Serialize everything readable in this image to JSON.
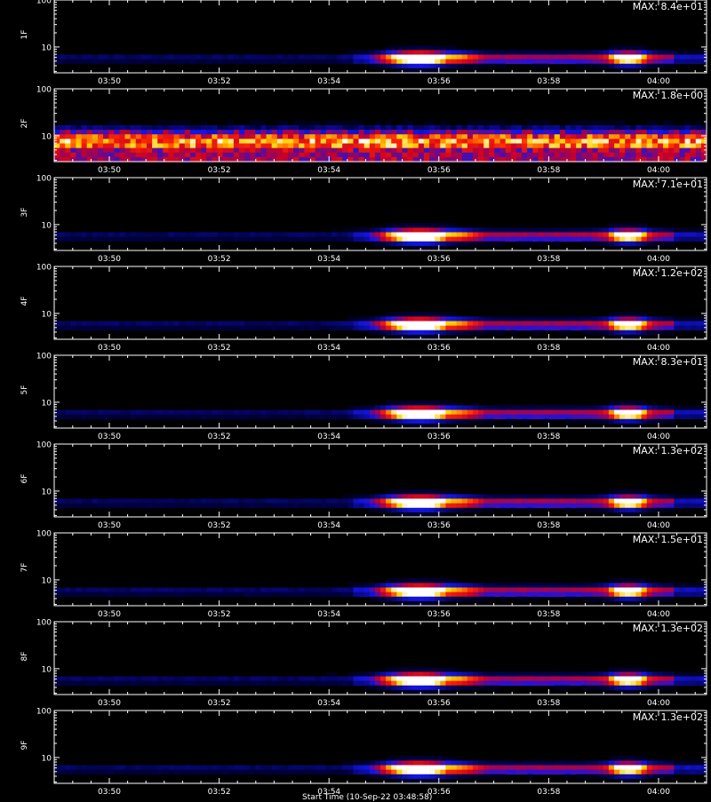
{
  "chart_data": {
    "type": "heatmap",
    "x_ticks": [
      "03:50",
      "03:52",
      "03:54",
      "03:56",
      "03:58",
      "04:00"
    ],
    "y_ticks": [
      "10",
      "100"
    ],
    "scale": "log",
    "colormap": "black-blue-red-yellow-white",
    "panels": [
      {
        "label": "1F",
        "max_text": "MAX: 8.4e+01",
        "max": 84,
        "style": "burst"
      },
      {
        "label": "2F",
        "max_text": "MAX: 1.8e+00",
        "max": 1.8,
        "style": "noise"
      },
      {
        "label": "3F",
        "max_text": "MAX: 7.1e+01",
        "max": 71,
        "style": "burst"
      },
      {
        "label": "4F",
        "max_text": "MAX: 1.2e+02",
        "max": 120,
        "style": "burst"
      },
      {
        "label": "5F",
        "max_text": "MAX: 8.3e+01",
        "max": 83,
        "style": "burst"
      },
      {
        "label": "6F",
        "max_text": "MAX: 1.3e+02",
        "max": 130,
        "style": "burst"
      },
      {
        "label": "7F",
        "max_text": "MAX: 1.5e+01",
        "max": 15,
        "style": "burst"
      },
      {
        "label": "8F",
        "max_text": "MAX: 1.3e+02",
        "max": 130,
        "style": "burst"
      },
      {
        "label": "9F",
        "max_text": "MAX: 1.3e+02",
        "max": 130,
        "style": "burst"
      }
    ]
  },
  "footer": "Start Time (10-Sep-22 03:48:58)"
}
